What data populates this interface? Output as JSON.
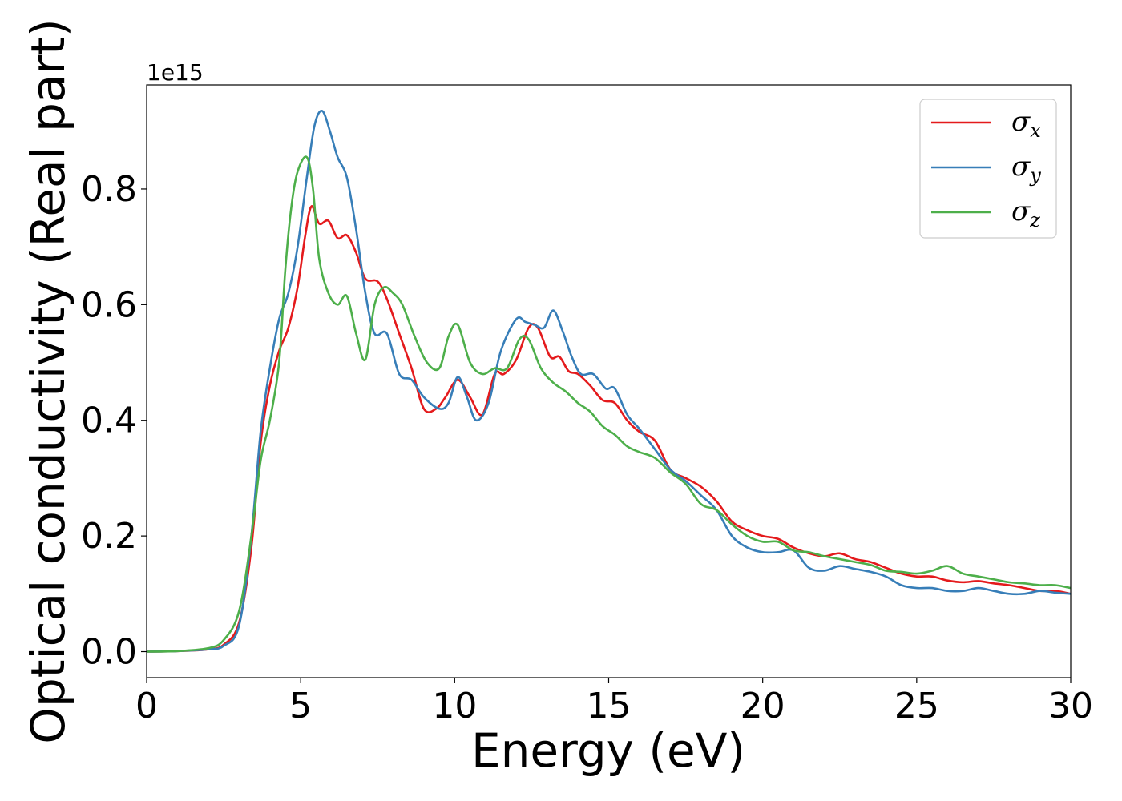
{
  "chart_data": {
    "type": "line",
    "xlabel": "Energy (eV)",
    "ylabel": "Optical conductivity (Real part)",
    "y_offset_label": "1e15",
    "xlim": [
      0,
      30
    ],
    "ylim": [
      -0.045,
      0.98
    ],
    "x_ticks": [
      0,
      5,
      10,
      15,
      20,
      25,
      30
    ],
    "x_tick_labels": [
      "0",
      "5",
      "10",
      "15",
      "20",
      "25",
      "30"
    ],
    "y_ticks": [
      0.0,
      0.2,
      0.4,
      0.6,
      0.8
    ],
    "y_tick_labels": [
      "0.0",
      "0.2",
      "0.4",
      "0.6",
      "0.8"
    ],
    "grid": false,
    "legend_position": "top-right",
    "series": [
      {
        "name": "σ",
        "subscript": "x",
        "color": "#e41a1c",
        "points": [
          [
            0,
            0
          ],
          [
            1,
            0.001
          ],
          [
            2,
            0.004
          ],
          [
            2.5,
            0.012
          ],
          [
            3,
            0.05
          ],
          [
            3.4,
            0.18
          ],
          [
            3.7,
            0.36
          ],
          [
            4,
            0.46
          ],
          [
            4.3,
            0.52
          ],
          [
            4.6,
            0.56
          ],
          [
            4.9,
            0.63
          ],
          [
            5.15,
            0.72
          ],
          [
            5.35,
            0.77
          ],
          [
            5.6,
            0.74
          ],
          [
            5.9,
            0.745
          ],
          [
            6.2,
            0.715
          ],
          [
            6.5,
            0.72
          ],
          [
            6.8,
            0.69
          ],
          [
            7.1,
            0.645
          ],
          [
            7.5,
            0.64
          ],
          [
            7.8,
            0.61
          ],
          [
            8.2,
            0.55
          ],
          [
            8.6,
            0.49
          ],
          [
            9,
            0.42
          ],
          [
            9.4,
            0.42
          ],
          [
            9.7,
            0.44
          ],
          [
            10.1,
            0.47
          ],
          [
            10.5,
            0.44
          ],
          [
            10.9,
            0.41
          ],
          [
            11.3,
            0.48
          ],
          [
            11.6,
            0.48
          ],
          [
            12,
            0.505
          ],
          [
            12.4,
            0.56
          ],
          [
            12.7,
            0.56
          ],
          [
            13.1,
            0.51
          ],
          [
            13.4,
            0.51
          ],
          [
            13.7,
            0.485
          ],
          [
            14,
            0.48
          ],
          [
            14.4,
            0.46
          ],
          [
            14.8,
            0.435
          ],
          [
            15.2,
            0.43
          ],
          [
            15.6,
            0.4
          ],
          [
            16,
            0.38
          ],
          [
            16.5,
            0.365
          ],
          [
            17,
            0.315
          ],
          [
            17.5,
            0.3
          ],
          [
            18,
            0.285
          ],
          [
            18.5,
            0.26
          ],
          [
            19,
            0.225
          ],
          [
            19.5,
            0.21
          ],
          [
            20,
            0.2
          ],
          [
            20.5,
            0.195
          ],
          [
            21,
            0.18
          ],
          [
            21.5,
            0.17
          ],
          [
            22,
            0.165
          ],
          [
            22.5,
            0.17
          ],
          [
            23,
            0.16
          ],
          [
            23.5,
            0.155
          ],
          [
            24,
            0.145
          ],
          [
            24.5,
            0.135
          ],
          [
            25,
            0.13
          ],
          [
            25.5,
            0.13
          ],
          [
            26,
            0.123
          ],
          [
            26.5,
            0.12
          ],
          [
            27,
            0.122
          ],
          [
            27.5,
            0.118
          ],
          [
            28,
            0.115
          ],
          [
            28.5,
            0.11
          ],
          [
            29,
            0.105
          ],
          [
            29.5,
            0.105
          ],
          [
            30,
            0.1
          ]
        ]
      },
      {
        "name": "σ",
        "subscript": "y",
        "color": "#377eb8",
        "points": [
          [
            0,
            0
          ],
          [
            1,
            0.001
          ],
          [
            2,
            0.004
          ],
          [
            2.5,
            0.01
          ],
          [
            3,
            0.045
          ],
          [
            3.4,
            0.2
          ],
          [
            3.7,
            0.38
          ],
          [
            4,
            0.49
          ],
          [
            4.3,
            0.575
          ],
          [
            4.6,
            0.62
          ],
          [
            4.9,
            0.7
          ],
          [
            5.2,
            0.82
          ],
          [
            5.45,
            0.91
          ],
          [
            5.7,
            0.935
          ],
          [
            5.95,
            0.9
          ],
          [
            6.2,
            0.855
          ],
          [
            6.5,
            0.82
          ],
          [
            6.8,
            0.73
          ],
          [
            7.1,
            0.62
          ],
          [
            7.4,
            0.55
          ],
          [
            7.8,
            0.55
          ],
          [
            8.2,
            0.48
          ],
          [
            8.6,
            0.47
          ],
          [
            9,
            0.44
          ],
          [
            9.5,
            0.42
          ],
          [
            9.8,
            0.43
          ],
          [
            10.1,
            0.475
          ],
          [
            10.4,
            0.44
          ],
          [
            10.7,
            0.4
          ],
          [
            11.1,
            0.43
          ],
          [
            11.5,
            0.52
          ],
          [
            12,
            0.575
          ],
          [
            12.3,
            0.57
          ],
          [
            12.6,
            0.565
          ],
          [
            12.9,
            0.56
          ],
          [
            13.2,
            0.59
          ],
          [
            13.5,
            0.555
          ],
          [
            13.8,
            0.51
          ],
          [
            14.1,
            0.48
          ],
          [
            14.5,
            0.48
          ],
          [
            14.9,
            0.455
          ],
          [
            15.2,
            0.455
          ],
          [
            15.6,
            0.41
          ],
          [
            16,
            0.385
          ],
          [
            16.5,
            0.35
          ],
          [
            17,
            0.315
          ],
          [
            17.5,
            0.295
          ],
          [
            18,
            0.27
          ],
          [
            18.5,
            0.245
          ],
          [
            19,
            0.2
          ],
          [
            19.5,
            0.18
          ],
          [
            20,
            0.172
          ],
          [
            20.5,
            0.172
          ],
          [
            21,
            0.175
          ],
          [
            21.5,
            0.145
          ],
          [
            22,
            0.14
          ],
          [
            22.5,
            0.148
          ],
          [
            23,
            0.143
          ],
          [
            23.5,
            0.138
          ],
          [
            24,
            0.13
          ],
          [
            24.5,
            0.115
          ],
          [
            25,
            0.11
          ],
          [
            25.5,
            0.11
          ],
          [
            26,
            0.105
          ],
          [
            26.5,
            0.105
          ],
          [
            27,
            0.11
          ],
          [
            27.5,
            0.105
          ],
          [
            28,
            0.1
          ],
          [
            28.5,
            0.1
          ],
          [
            29,
            0.105
          ],
          [
            29.5,
            0.102
          ],
          [
            30,
            0.1
          ]
        ]
      },
      {
        "name": "σ",
        "subscript": "z",
        "color": "#4daf4a",
        "points": [
          [
            0,
            0
          ],
          [
            1,
            0.001
          ],
          [
            2,
            0.006
          ],
          [
            2.5,
            0.02
          ],
          [
            3,
            0.07
          ],
          [
            3.4,
            0.2
          ],
          [
            3.7,
            0.33
          ],
          [
            4,
            0.4
          ],
          [
            4.3,
            0.5
          ],
          [
            4.5,
            0.66
          ],
          [
            4.7,
            0.77
          ],
          [
            4.9,
            0.83
          ],
          [
            5.2,
            0.855
          ],
          [
            5.4,
            0.8
          ],
          [
            5.6,
            0.68
          ],
          [
            5.9,
            0.62
          ],
          [
            6.2,
            0.6
          ],
          [
            6.5,
            0.615
          ],
          [
            6.8,
            0.55
          ],
          [
            7.1,
            0.505
          ],
          [
            7.4,
            0.6
          ],
          [
            7.7,
            0.63
          ],
          [
            8,
            0.62
          ],
          [
            8.3,
            0.6
          ],
          [
            8.7,
            0.545
          ],
          [
            9.1,
            0.5
          ],
          [
            9.5,
            0.49
          ],
          [
            9.8,
            0.545
          ],
          [
            10.1,
            0.565
          ],
          [
            10.5,
            0.5
          ],
          [
            10.9,
            0.48
          ],
          [
            11.3,
            0.49
          ],
          [
            11.7,
            0.49
          ],
          [
            12.1,
            0.54
          ],
          [
            12.4,
            0.54
          ],
          [
            12.8,
            0.49
          ],
          [
            13.2,
            0.465
          ],
          [
            13.6,
            0.45
          ],
          [
            14,
            0.43
          ],
          [
            14.4,
            0.415
          ],
          [
            14.8,
            0.39
          ],
          [
            15.2,
            0.375
          ],
          [
            15.6,
            0.355
          ],
          [
            16,
            0.345
          ],
          [
            16.5,
            0.335
          ],
          [
            17,
            0.31
          ],
          [
            17.5,
            0.29
          ],
          [
            18,
            0.255
          ],
          [
            18.5,
            0.245
          ],
          [
            19,
            0.22
          ],
          [
            19.5,
            0.2
          ],
          [
            20,
            0.19
          ],
          [
            20.5,
            0.19
          ],
          [
            21,
            0.175
          ],
          [
            21.5,
            0.172
          ],
          [
            22,
            0.165
          ],
          [
            22.5,
            0.16
          ],
          [
            23,
            0.155
          ],
          [
            23.5,
            0.15
          ],
          [
            24,
            0.14
          ],
          [
            24.5,
            0.138
          ],
          [
            25,
            0.135
          ],
          [
            25.5,
            0.14
          ],
          [
            26,
            0.148
          ],
          [
            26.5,
            0.135
          ],
          [
            27,
            0.13
          ],
          [
            27.5,
            0.125
          ],
          [
            28,
            0.12
          ],
          [
            28.5,
            0.118
          ],
          [
            29,
            0.115
          ],
          [
            29.5,
            0.115
          ],
          [
            30,
            0.11
          ]
        ]
      }
    ]
  }
}
